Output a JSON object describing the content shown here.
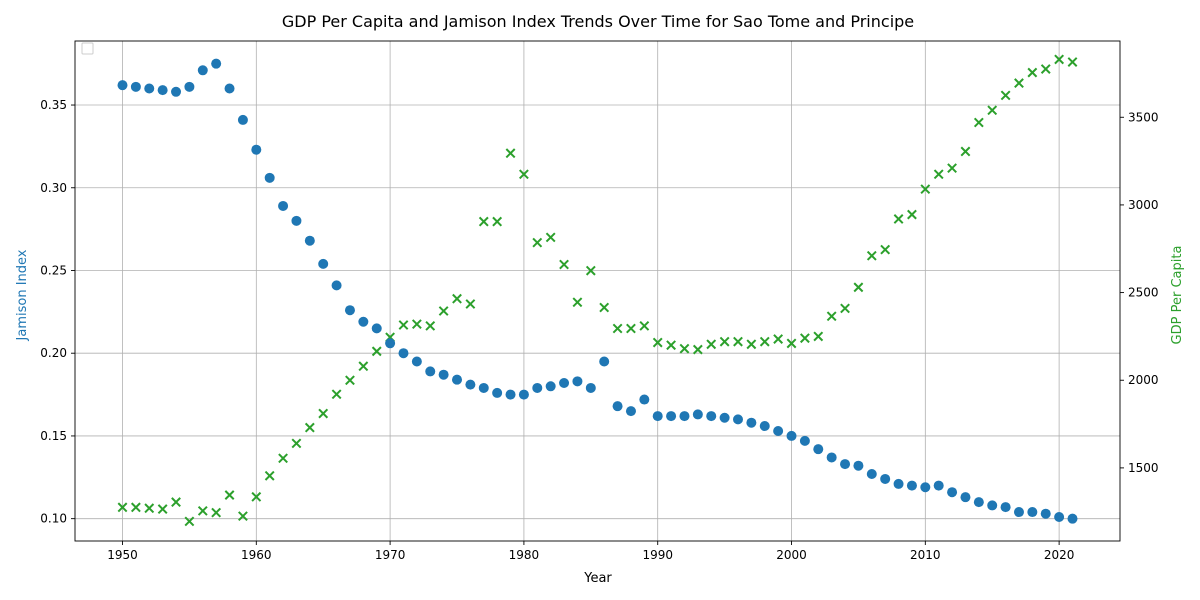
{
  "colors": {
    "jamison": "#1f77b4",
    "gdp": "#2ca02c",
    "grid": "#b0b0b0"
  },
  "chart_data": {
    "type": "scatter",
    "title": "GDP Per Capita and Jamison Index Trends Over Time for Sao Tome and Principe",
    "xlabel": "Year",
    "ylabel_left": "Jamison Index",
    "ylabel_right": "GDP Per Capita",
    "xlim": [
      1946.45,
      2024.55
    ],
    "ylim_left": [
      0.0865,
      0.3887
    ],
    "ylim_right": [
      1083,
      3935
    ],
    "x_ticks": [
      1950,
      1960,
      1970,
      1980,
      1990,
      2000,
      2010,
      2020
    ],
    "y_ticks_left": [
      0.1,
      0.15,
      0.2,
      0.25,
      0.3,
      0.35
    ],
    "y_ticks_left_labels": [
      "0.10",
      "0.15",
      "0.20",
      "0.25",
      "0.30",
      "0.35"
    ],
    "y_ticks_right": [
      1500,
      2000,
      2500,
      3000,
      3500
    ],
    "grid": true,
    "legend": "top-left (empty)",
    "x": [
      1950,
      1951,
      1952,
      1953,
      1954,
      1955,
      1956,
      1957,
      1958,
      1959,
      1960,
      1961,
      1962,
      1963,
      1964,
      1965,
      1966,
      1967,
      1968,
      1969,
      1970,
      1971,
      1972,
      1973,
      1974,
      1975,
      1976,
      1977,
      1978,
      1979,
      1980,
      1981,
      1982,
      1983,
      1984,
      1985,
      1986,
      1987,
      1988,
      1989,
      1990,
      1991,
      1992,
      1993,
      1994,
      1995,
      1996,
      1997,
      1998,
      1999,
      2000,
      2001,
      2002,
      2003,
      2004,
      2005,
      2006,
      2007,
      2008,
      2009,
      2010,
      2011,
      2012,
      2013,
      2014,
      2015,
      2016,
      2017,
      2018,
      2019,
      2020,
      2021
    ],
    "series": [
      {
        "axis": "left",
        "marker": "circle",
        "values": [
          0.362,
          0.361,
          0.36,
          0.359,
          0.358,
          0.361,
          0.371,
          0.375,
          0.36,
          0.341,
          0.323,
          0.306,
          0.289,
          0.28,
          0.268,
          0.254,
          0.241,
          0.226,
          0.219,
          0.215,
          0.206,
          0.2,
          0.195,
          0.189,
          0.187,
          0.184,
          0.181,
          0.179,
          0.176,
          0.175,
          0.175,
          0.179,
          0.18,
          0.182,
          0.183,
          0.179,
          0.195,
          0.168,
          0.165,
          0.172,
          0.162,
          0.162,
          0.162,
          0.163,
          0.162,
          0.161,
          0.16,
          0.158,
          0.156,
          0.153,
          0.15,
          0.147,
          0.142,
          0.137,
          0.133,
          0.132,
          0.127,
          0.124,
          0.121,
          0.12,
          0.119,
          0.12,
          0.116,
          0.113,
          0.11,
          0.108,
          0.107,
          0.104,
          0.104,
          0.103,
          0.101,
          0.1
        ]
      },
      {
        "axis": "right",
        "marker": "x",
        "values": [
          1275,
          1275,
          1270,
          1265,
          1305,
          1195,
          1255,
          1245,
          1345,
          1225,
          1335,
          1455,
          1555,
          1640,
          1730,
          1810,
          1920,
          2000,
          2080,
          2165,
          2245,
          2315,
          2320,
          2310,
          2395,
          2465,
          2435,
          2905,
          2905,
          3295,
          3175,
          2785,
          2815,
          2660,
          2445,
          2625,
          2415,
          2295,
          2295,
          2310,
          2215,
          2200,
          2180,
          2175,
          2205,
          2220,
          2220,
          2205,
          2220,
          2235,
          2210,
          2240,
          2250,
          2365,
          2410,
          2530,
          2710,
          2745,
          2920,
          2945,
          3090,
          3175,
          3210,
          3305,
          3470,
          3540,
          3625,
          3695,
          3755,
          3775,
          3830,
          3815
        ]
      }
    ]
  }
}
